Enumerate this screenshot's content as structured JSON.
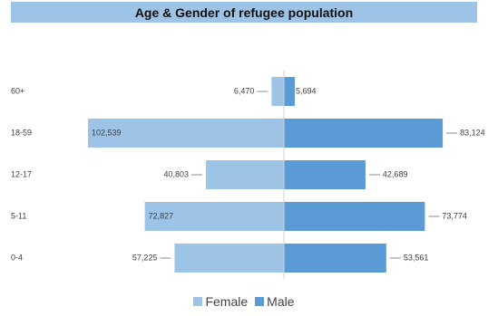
{
  "chart_data": {
    "type": "bar",
    "orientation": "horizontal",
    "layout": "population-pyramid",
    "title": "Age & Gender of refugee population",
    "categories": [
      "60+",
      "18-59",
      "12-17",
      "5-11",
      "0-4"
    ],
    "series": [
      {
        "name": "Female",
        "values": [
          6470,
          102539,
          40803,
          72827,
          57225
        ],
        "color": "#9dc3e6",
        "side": "left"
      },
      {
        "name": "Male",
        "values": [
          5694,
          83124,
          42689,
          73774,
          53561
        ],
        "color": "#5b9bd5",
        "side": "right"
      }
    ],
    "value_labels": {
      "Female": [
        "6,470",
        "102,539",
        "40,803",
        "72,827",
        "57,225"
      ],
      "Male": [
        "5,694",
        "83,124",
        "42,689",
        "73,774",
        "53,561"
      ]
    },
    "xlim": [
      -105000,
      105000
    ],
    "legend_position": "bottom",
    "grid": false
  }
}
